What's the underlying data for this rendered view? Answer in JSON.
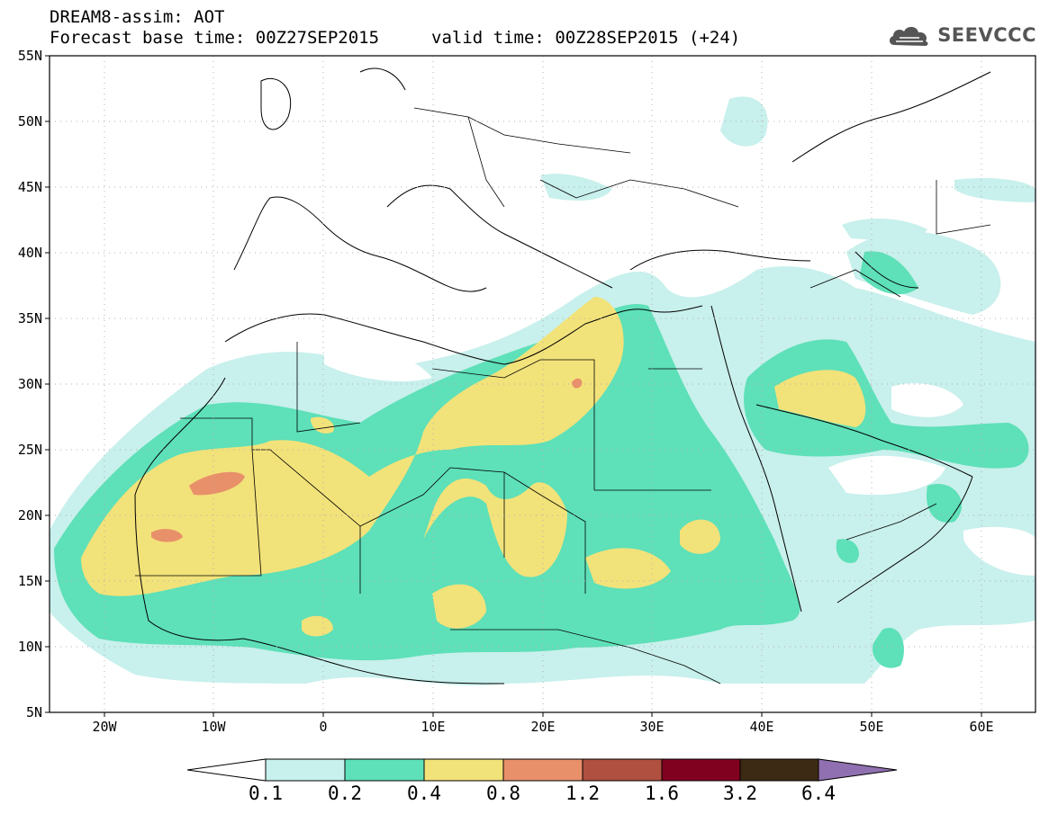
{
  "header": {
    "line1": "DREAM8-assim: AOT",
    "base_time": "Forecast base time: 00Z27SEP2015",
    "valid_time": "valid time: 00Z28SEP2015 (+24)"
  },
  "logo": {
    "text": "SEEVCCC",
    "icon": "cloud-icon"
  },
  "map": {
    "lat_labels": [
      "55N",
      "50N",
      "45N",
      "40N",
      "35N",
      "30N",
      "25N",
      "20N",
      "15N",
      "10N",
      "5N"
    ],
    "lon_labels": [
      "20W",
      "10W",
      "0",
      "10E",
      "20E",
      "30E",
      "40E",
      "50E",
      "60E"
    ],
    "colors": {
      "c01": "#c8f0ec",
      "c02": "#5ee0b8",
      "c04": "#f2e27a",
      "c08": "#e8906a",
      "land_lines": "#000000",
      "grid": "#b0b0b0"
    }
  },
  "colorbar": {
    "labels": [
      "0.1",
      "0.2",
      "0.4",
      "0.8",
      "1.2",
      "1.6",
      "3.2",
      "6.4"
    ],
    "colors": [
      "#ffffff",
      "#c8f0ec",
      "#5ee0b8",
      "#f2e27a",
      "#e8906a",
      "#b05040",
      "#800020",
      "#3c2a14",
      "#9070b0"
    ]
  }
}
